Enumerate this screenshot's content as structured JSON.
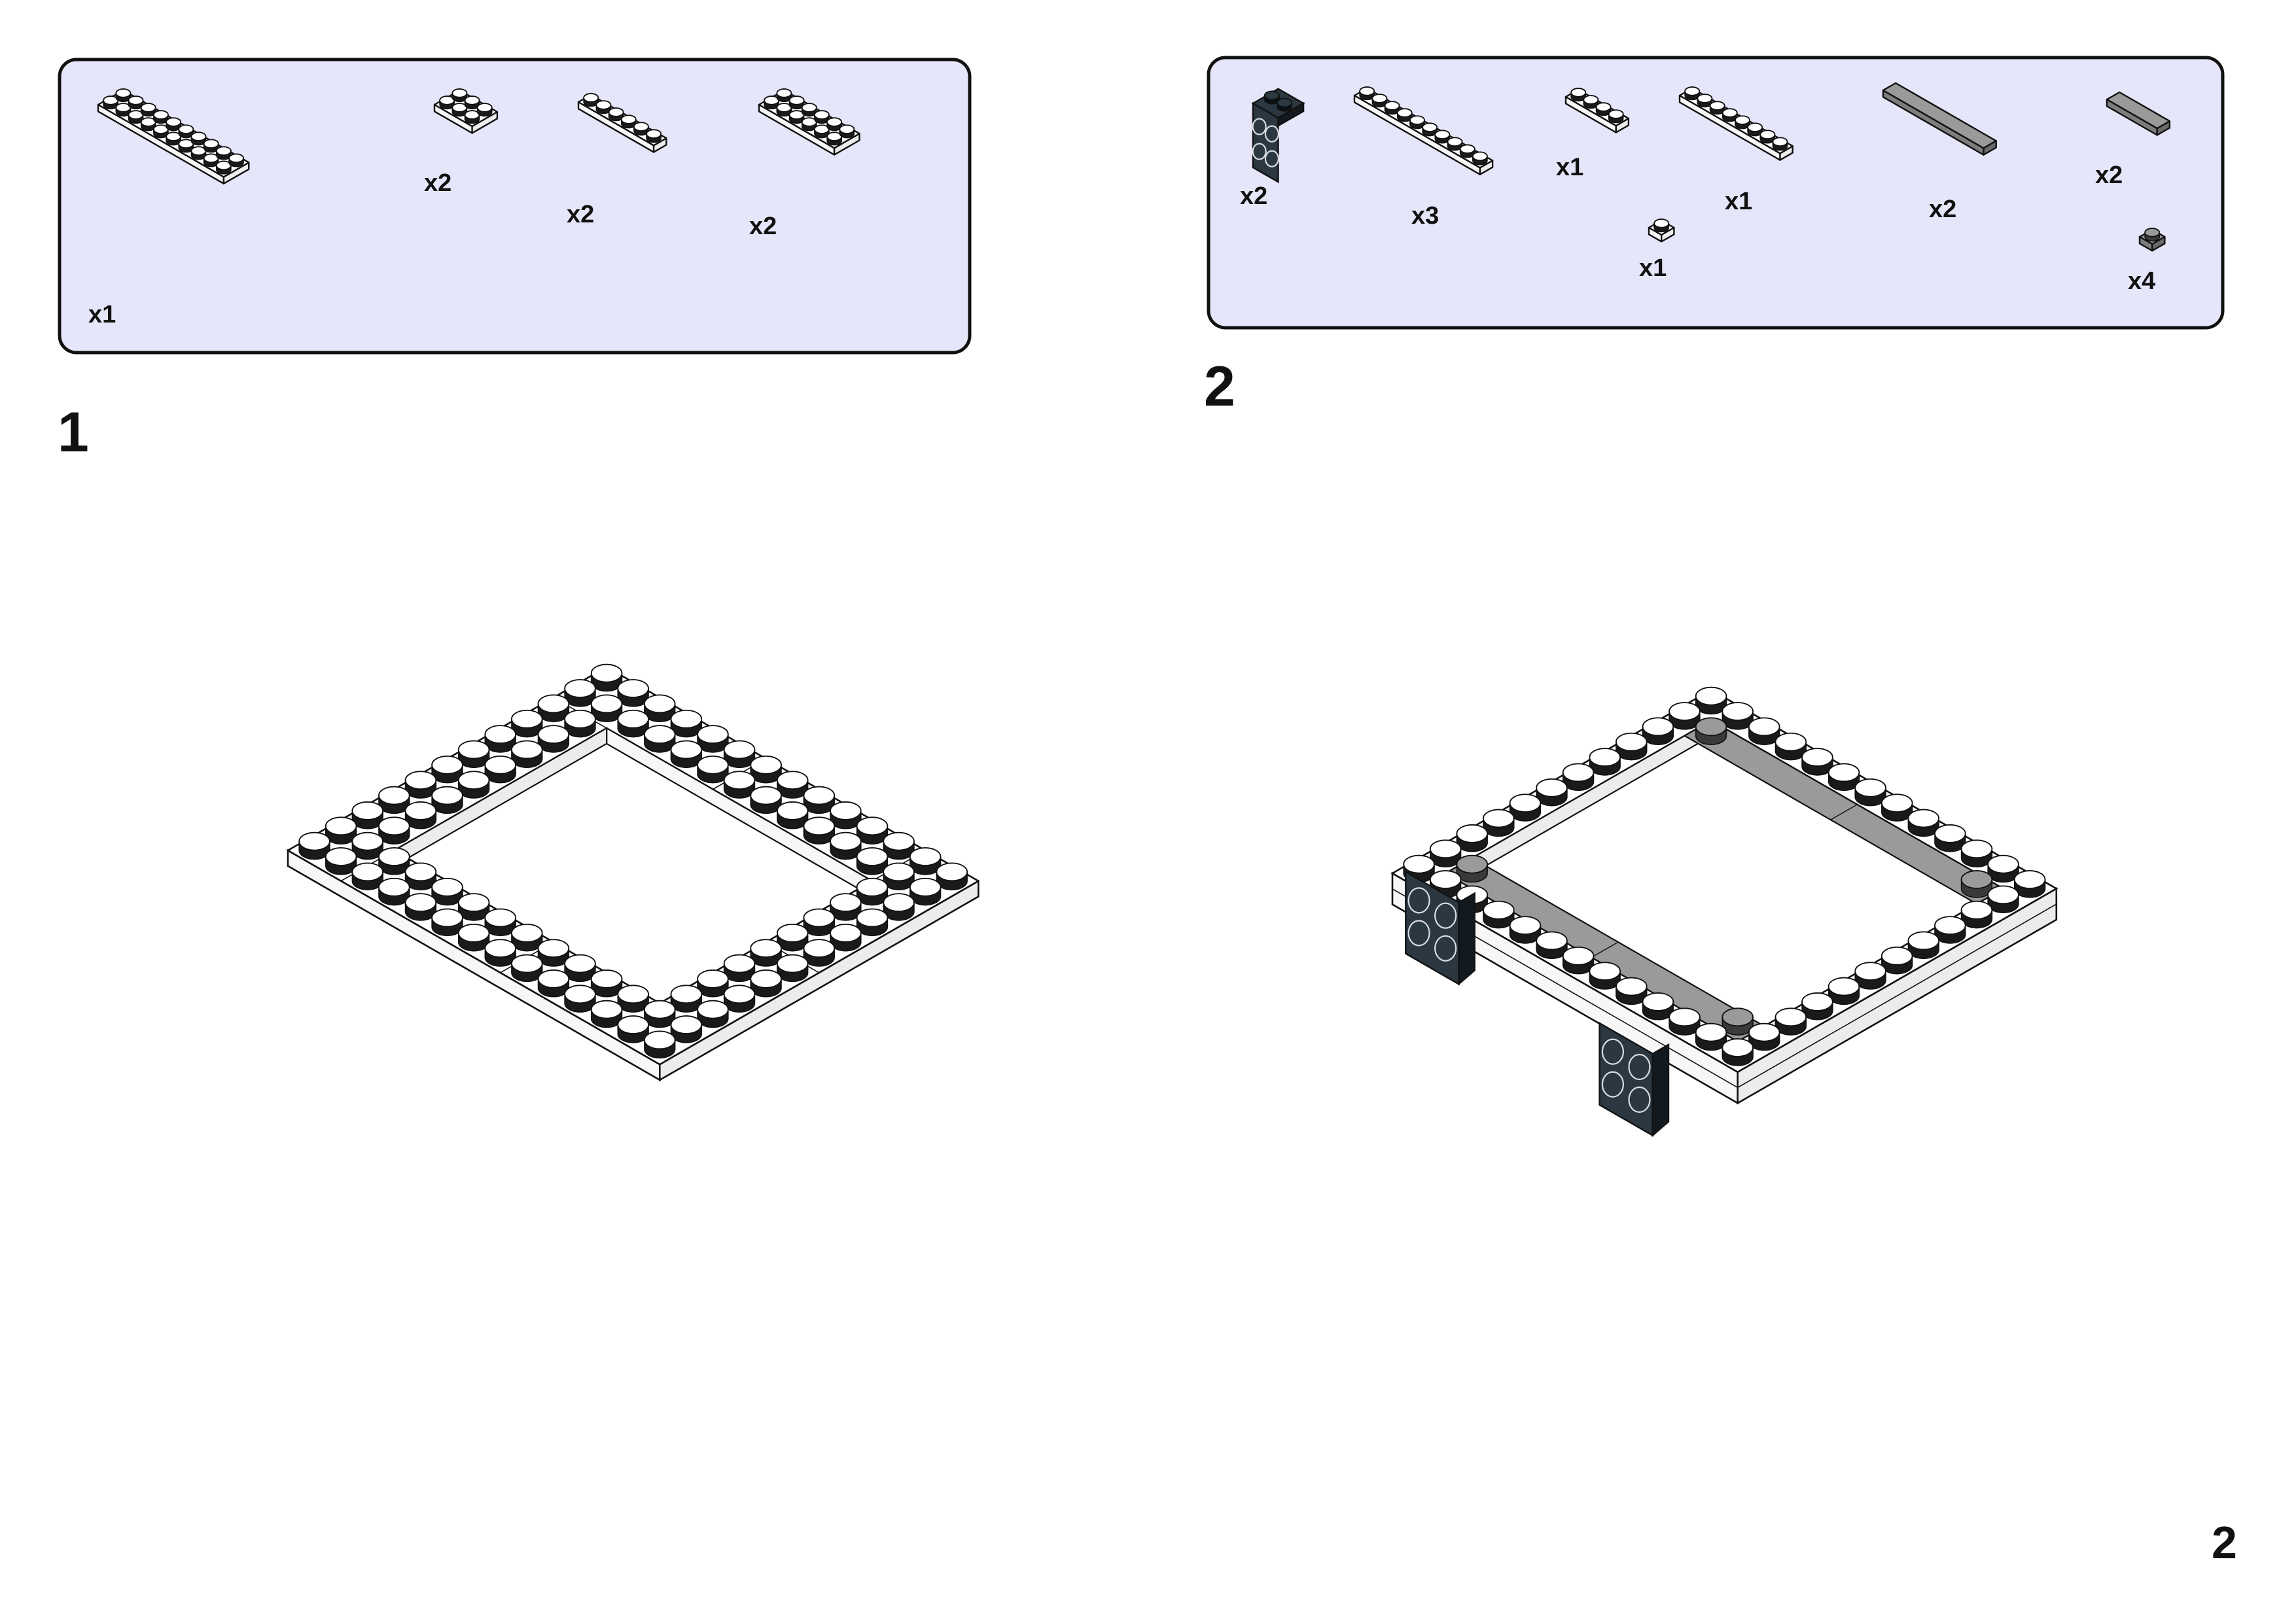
{
  "page_number": "2",
  "colors": {
    "parts_panel_fill": "#e6e6fb",
    "plate_white": "#ffffff",
    "tile_gray": "#9a9a9a",
    "bracket_dark": "#2b3842"
  },
  "steps": [
    {
      "number": "1",
      "parts": [
        {
          "icon": "plate-2x10-white",
          "qty": "x1"
        },
        {
          "icon": "plate-2x3-white",
          "qty": "x2"
        },
        {
          "icon": "plate-1x6-white",
          "qty": "x2"
        },
        {
          "icon": "plate-2x6-white",
          "qty": "x2"
        }
      ]
    },
    {
      "number": "2",
      "parts": [
        {
          "icon": "bracket-1x2-2x2-dark",
          "qty": "x2"
        },
        {
          "icon": "plate-1x10-white",
          "qty": "x3"
        },
        {
          "icon": "plate-1x4-white",
          "qty": "x1"
        },
        {
          "icon": "plate-1x1-white",
          "qty": "x1"
        },
        {
          "icon": "plate-1x8-white",
          "qty": "x1"
        },
        {
          "icon": "tile-1x8-gray",
          "qty": "x2"
        },
        {
          "icon": "tile-1x4-gray",
          "qty": "x2"
        },
        {
          "icon": "plate-1x1-gray",
          "qty": "x4"
        }
      ]
    }
  ]
}
